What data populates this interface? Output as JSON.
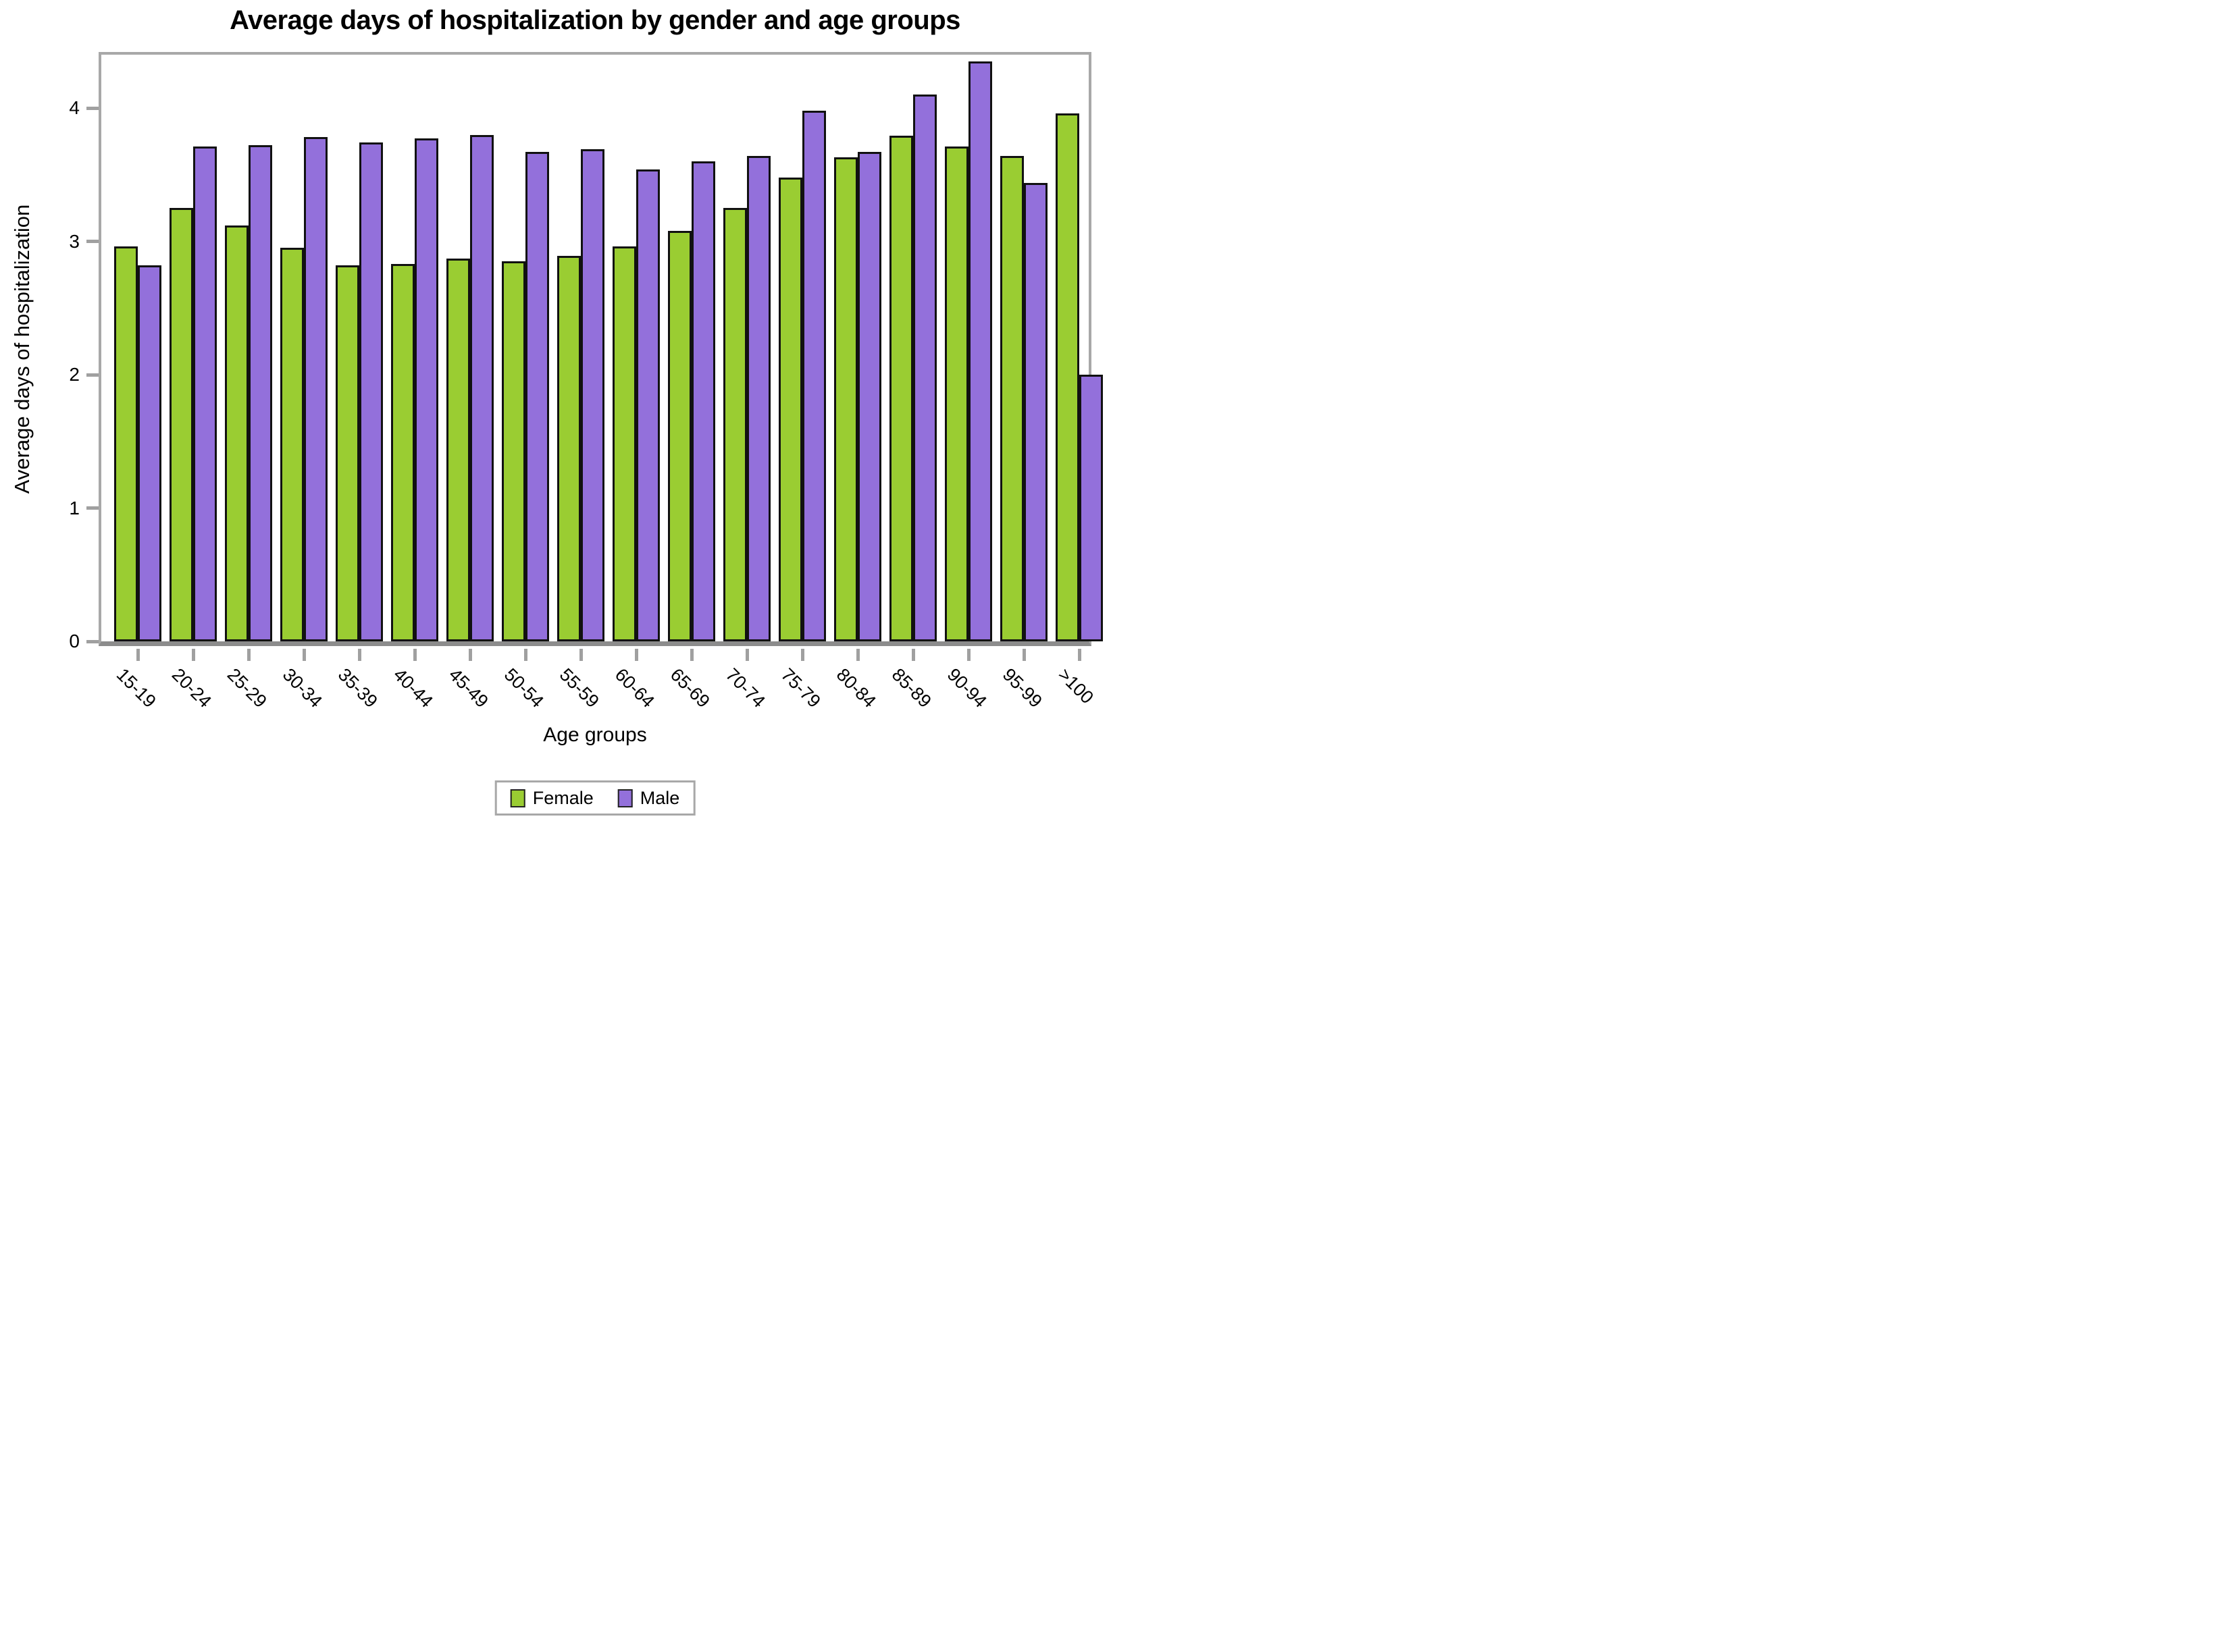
{
  "chart_data": {
    "type": "bar",
    "title": "Average days of hospitalization by gender and age groups",
    "xlabel": "Age groups",
    "ylabel": "Average days of hospitalization",
    "categories": [
      "15-19",
      "20-24",
      "25-29",
      "30-34",
      "35-39",
      "40-44",
      "45-49",
      "50-54",
      "55-59",
      "60-64",
      "65-69",
      "70-74",
      "75-79",
      "80-84",
      "85-89",
      "90-94",
      "95-99",
      ">100"
    ],
    "series": [
      {
        "name": "Female",
        "color": "#9ACD32",
        "values": [
          2.96,
          3.25,
          3.12,
          2.95,
          2.82,
          2.83,
          2.87,
          2.85,
          2.89,
          2.96,
          3.08,
          3.25,
          3.48,
          3.63,
          3.79,
          3.71,
          3.64,
          3.96
        ]
      },
      {
        "name": "Male",
        "color": "#9370DB",
        "values": [
          2.82,
          3.71,
          3.72,
          3.78,
          3.74,
          3.77,
          3.8,
          3.67,
          3.69,
          3.54,
          3.6,
          3.64,
          3.98,
          3.67,
          4.1,
          4.35,
          3.44,
          2.0
        ]
      }
    ],
    "yticks": [
      0,
      1,
      2,
      3,
      4
    ],
    "ylim": [
      0,
      4.4
    ],
    "grid": false,
    "legend_position": "bottom-center",
    "bar_border_color": "#111111",
    "axis_color": "#a8a8a8",
    "tick_color": "#a0a0a0",
    "bottom_spine_color": "#8c8c8c",
    "text_color": "#000000"
  }
}
